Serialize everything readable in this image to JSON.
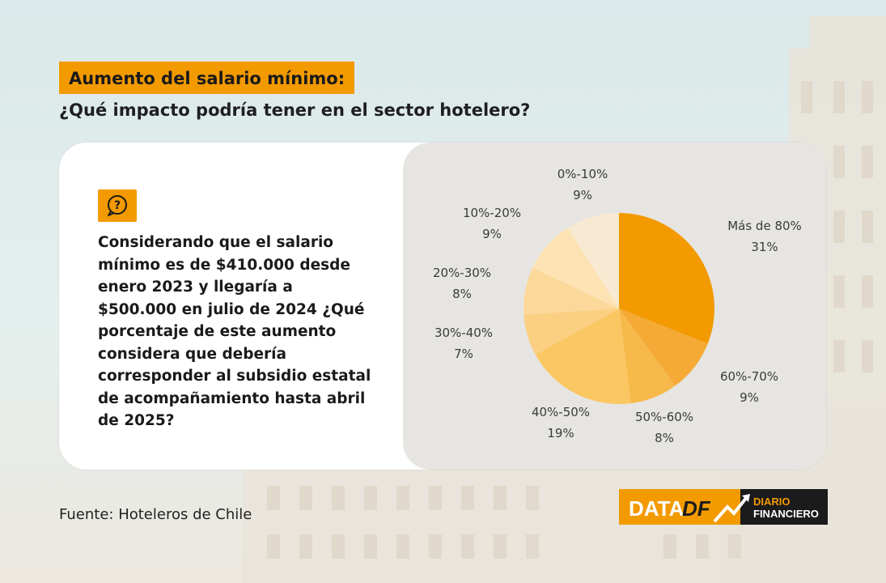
{
  "header": {
    "title": "Aumento del salario mínimo:",
    "subtitle": "¿Qué impacto podría tener en el sector hotelero?"
  },
  "question": {
    "icon": "question-bubble-icon",
    "text": "Considerando que el salario mínimo es de $410.000 desde enero 2023 y llegaría a $500.000 en julio de 2024 ¿Qué porcentaje de este aumento considera que debería corresponder al subsidio estatal de acompañamiento hasta abril de 2025?"
  },
  "footer": {
    "source_label": "Fuente",
    "source_value": ": Hoteleros de Chile"
  },
  "logo": {
    "data": "DATA",
    "df": "DF",
    "diario": "DIARIO",
    "financiero": "FINANCIERO"
  },
  "colors": {
    "accent": "#f29a00",
    "card": "#ffffff",
    "chart_panel": "#e6e5e2"
  },
  "chart_data": {
    "type": "pie",
    "title": "",
    "slices": [
      {
        "label": "Más de 80%",
        "value": 31,
        "display": "31%",
        "color": "#f29a00"
      },
      {
        "label": "60%-70%",
        "value": 9,
        "display": "9%",
        "color": "#f4aa35"
      },
      {
        "label": "50%-60%",
        "value": 8,
        "display": "8%",
        "color": "#f7b94a"
      },
      {
        "label": "40%-50%",
        "value": 19,
        "display": "19%",
        "color": "#fbc763"
      },
      {
        "label": "30%-40%",
        "value": 7,
        "display": "7%",
        "color": "#fbd083"
      },
      {
        "label": "20%-30%",
        "value": 8,
        "display": "8%",
        "color": "#fcd99b"
      },
      {
        "label": "10%-20%",
        "value": 9,
        "display": "9%",
        "color": "#fde3b3"
      },
      {
        "label": "0%-10%",
        "value": 9,
        "display": "9%",
        "color": "#f8e9d2"
      }
    ]
  }
}
